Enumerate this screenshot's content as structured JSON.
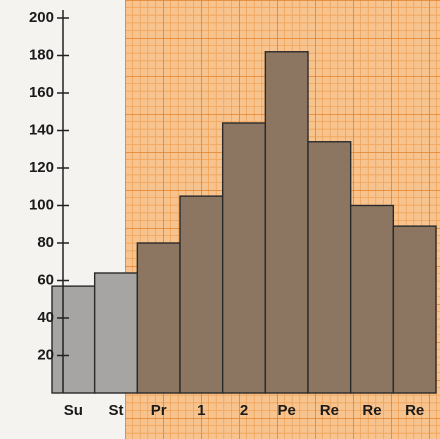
{
  "chart_data": {
    "type": "bar",
    "categories": [
      "Su",
      "St",
      "Pr",
      "1",
      "2",
      "Pe",
      "Re",
      "Re",
      "Re"
    ],
    "values": [
      57,
      64,
      80,
      105,
      144,
      182,
      134,
      100,
      89
    ],
    "colors": [
      "#a7a5a3",
      "#a7a5a3",
      "#8c7661",
      "#8c7661",
      "#8c7661",
      "#8c7661",
      "#8c7661",
      "#8c7661",
      "#8c7661"
    ],
    "ylim": [
      0,
      200
    ],
    "yticks": [
      20,
      40,
      60,
      80,
      100,
      120,
      140,
      160,
      180,
      200
    ]
  }
}
